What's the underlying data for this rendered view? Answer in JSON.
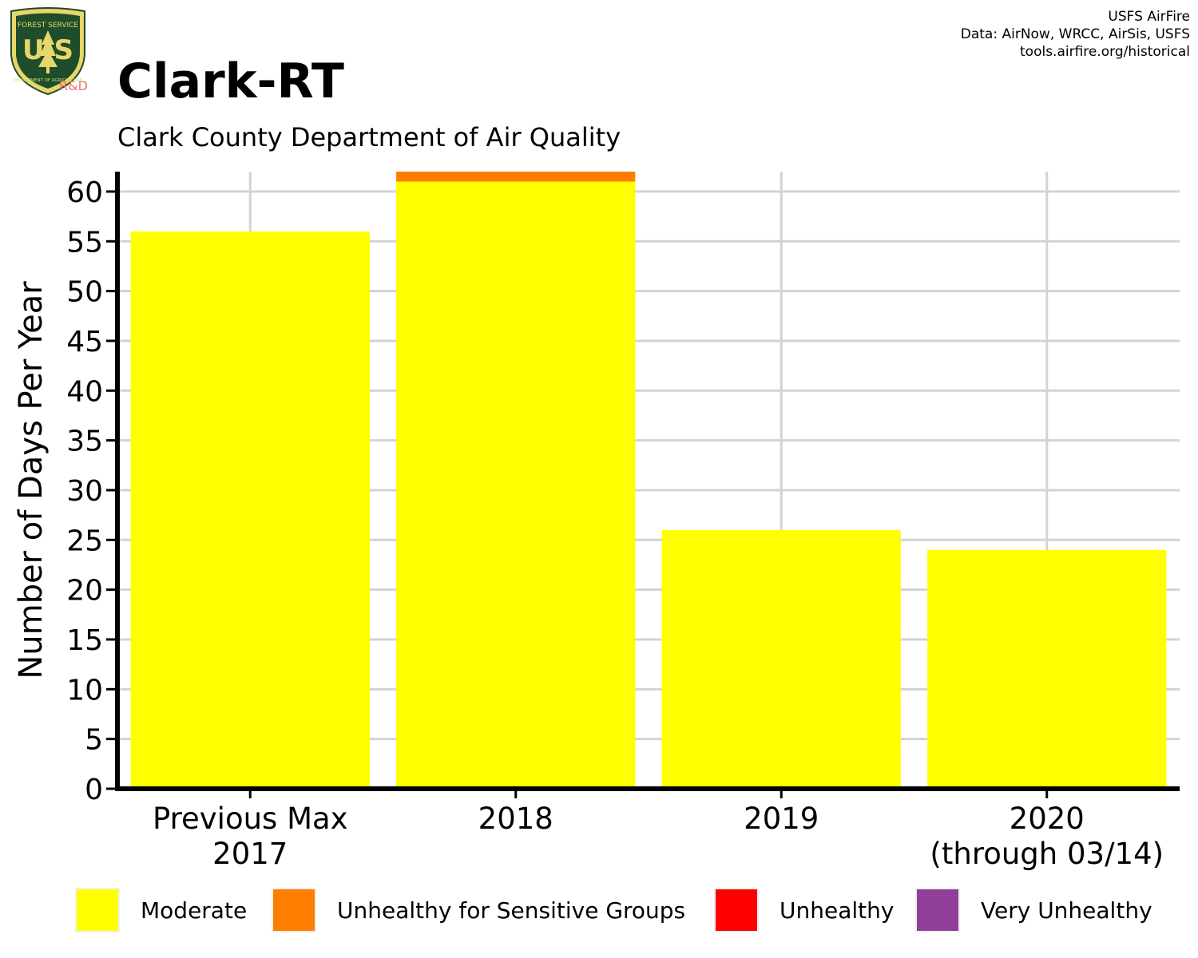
{
  "header": {
    "title": "Clark-RT",
    "subtitle": "Clark County Department of Air Quality",
    "logo_suffix": "R&D",
    "credits": [
      "USFS AirFire",
      "Data: AirNow, WRCC, AirSis, USFS",
      "tools.airfire.org/historical"
    ]
  },
  "logo": {
    "name": "usfs-shield-icon",
    "text_top": "FOREST SERVICE",
    "text_letters": "U S",
    "text_bottom": "DEPARTMENT OF AGRICULTURE"
  },
  "chart_data": {
    "type": "bar",
    "stacked": true,
    "categories": [
      "Previous Max\n2017",
      "2018",
      "2019",
      "2020\n(through 03/14)"
    ],
    "ylabel": "Number of Days Per Year",
    "xlabel": "",
    "ylim": [
      0,
      62
    ],
    "yticks": [
      0,
      5,
      10,
      15,
      20,
      25,
      30,
      35,
      40,
      45,
      50,
      55,
      60
    ],
    "grid": true,
    "legend_placement": "bottom",
    "series": [
      {
        "name": "Moderate",
        "color": "#ffff00",
        "values": [
          56,
          61,
          26,
          24
        ]
      },
      {
        "name": "Unhealthy for Sensitive Groups",
        "color": "#ff7e00",
        "values": [
          0,
          1,
          0,
          0
        ]
      },
      {
        "name": "Unhealthy",
        "color": "#ff0000",
        "values": [
          0,
          0,
          0,
          0
        ]
      },
      {
        "name": "Very Unhealthy",
        "color": "#8f3f97",
        "values": [
          0,
          0,
          0,
          0
        ]
      }
    ]
  }
}
